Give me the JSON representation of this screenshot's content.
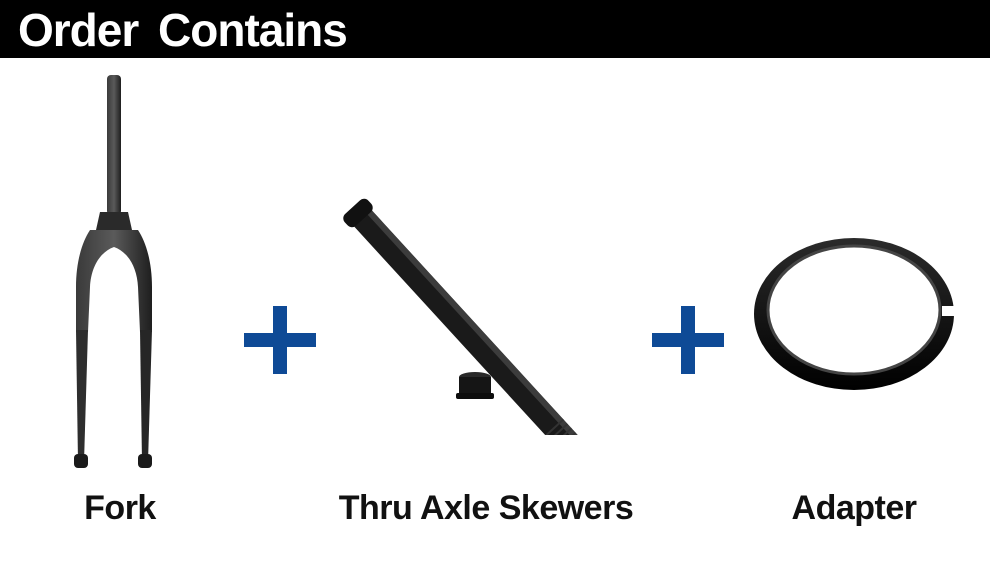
{
  "header": {
    "title": "Order Contains"
  },
  "items": [
    {
      "label": "Fork",
      "icon": "fork-icon"
    },
    {
      "label": "Thru Axle Skewers",
      "icon": "thru-axle-icon"
    },
    {
      "label": "Adapter",
      "icon": "adapter-ring-icon"
    }
  ],
  "separators": [
    {
      "icon": "plus-icon"
    },
    {
      "icon": "plus-icon"
    }
  ],
  "colors": {
    "header_bg": "#000000",
    "header_text": "#ffffff",
    "plus": "#0e4a96",
    "caption": "#111111",
    "product": "#1c1c1c"
  }
}
